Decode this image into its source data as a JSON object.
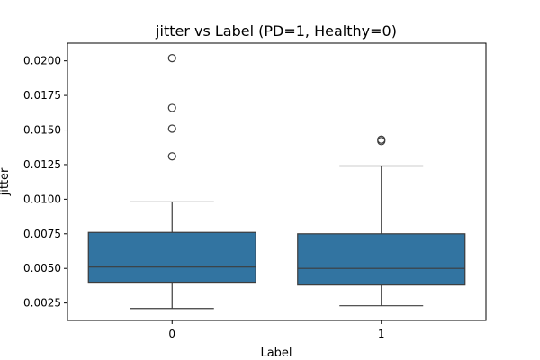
{
  "chart_data": {
    "type": "box",
    "title": "jitter vs Label (PD=1, Healthy=0)",
    "xlabel": "Label",
    "ylabel": "jitter",
    "categories": [
      "0",
      "1"
    ],
    "ylim": [
      0.00124,
      0.02128
    ],
    "yticks": [
      "0.0025",
      "0.0050",
      "0.0075",
      "0.0100",
      "0.0125",
      "0.0150",
      "0.0175",
      "0.0200"
    ],
    "grid": false,
    "box_color": "#3274a1",
    "line_color": "#3d3d3d",
    "boxes": [
      {
        "category": "0",
        "whisker_low": 0.0021,
        "q1": 0.004,
        "median": 0.0051,
        "q3": 0.0076,
        "whisker_high": 0.0098,
        "outliers": [
          0.0131,
          0.0151,
          0.0166,
          0.0202
        ]
      },
      {
        "category": "1",
        "whisker_low": 0.0023,
        "q1": 0.0038,
        "median": 0.005,
        "q3": 0.0075,
        "whisker_high": 0.0124,
        "outliers": [
          0.0142,
          0.0143
        ]
      }
    ]
  }
}
